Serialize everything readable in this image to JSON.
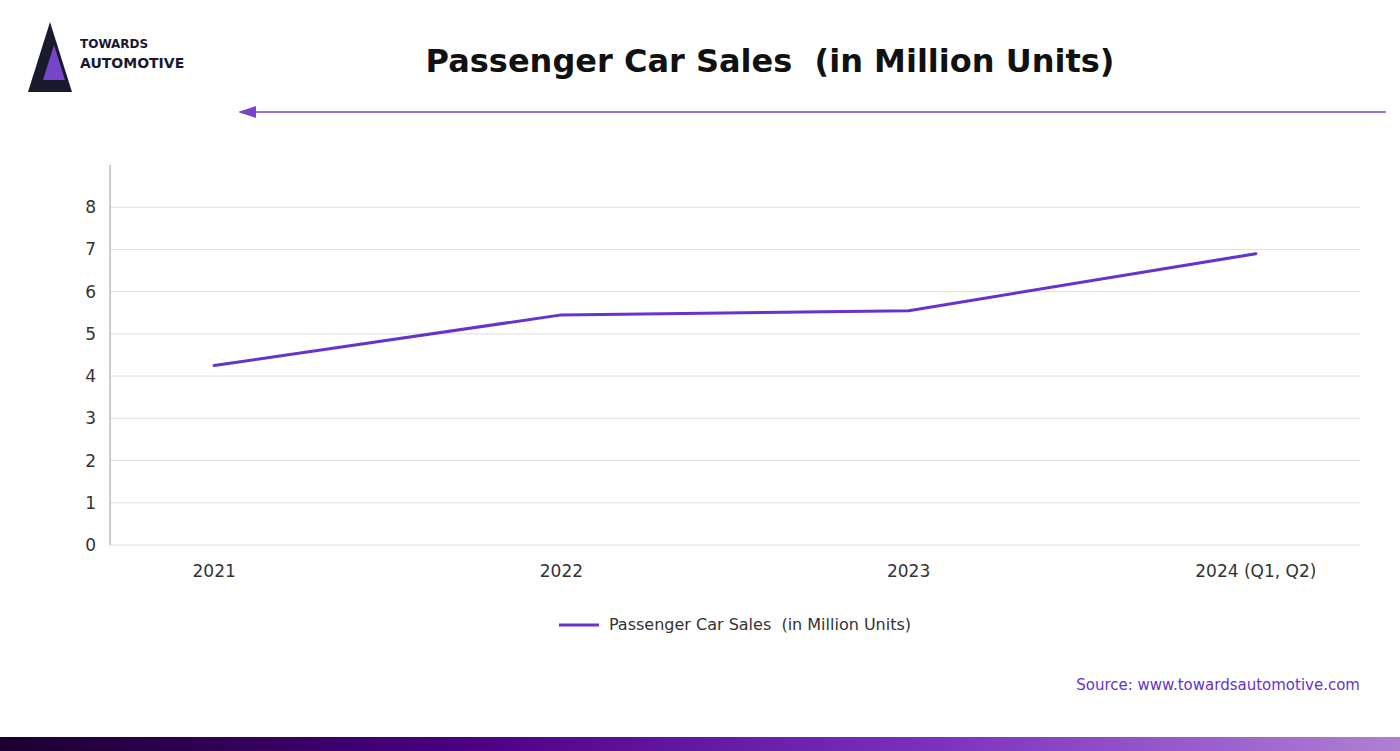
{
  "chart_data": {
    "type": "line",
    "title": "Passenger Car Sales  (in Million Units)",
    "categories": [
      "2021",
      "2022",
      "2023",
      "2024 (Q1, Q2)"
    ],
    "series": [
      {
        "name": "Passenger Car Sales  (in Million Units)",
        "color": "#6633cc",
        "values": [
          4.25,
          5.45,
          5.55,
          6.9
        ]
      }
    ],
    "ylim": [
      0,
      9
    ],
    "yticks": [
      0,
      1,
      2,
      3,
      4,
      5,
      6,
      7,
      8
    ],
    "grid": true,
    "legend": "bottom",
    "annotations": [
      "Source: www.towardsautomotive.com",
      "TOWARDS",
      "AUTOMOTIVE"
    ]
  }
}
